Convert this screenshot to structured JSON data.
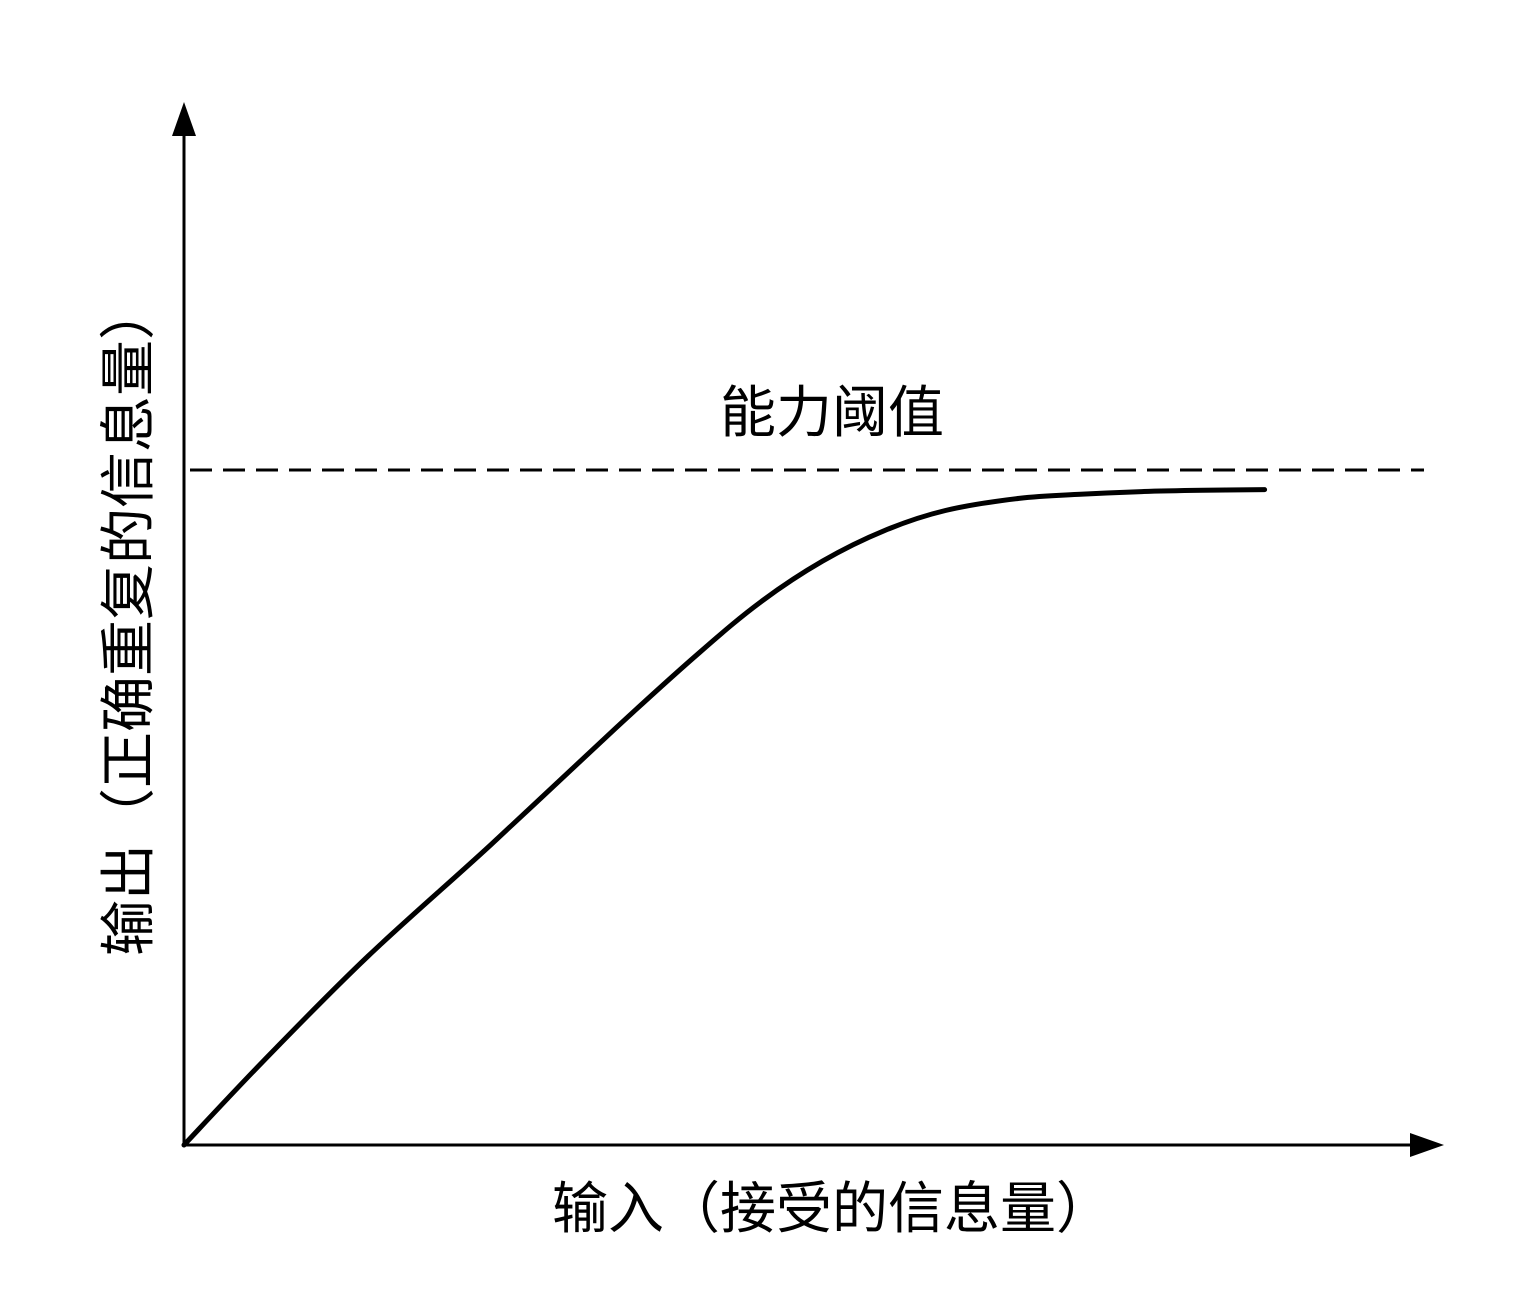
{
  "chart_data": {
    "type": "line",
    "title": "",
    "xlabel": "输入（接受的信息量）",
    "ylabel": "输出（正确重复的信息量）",
    "xlim": [
      0,
      100
    ],
    "ylim": [
      0,
      100
    ],
    "grid": false,
    "annotation": {
      "text": "能力阈值",
      "threshold_y": 100
    },
    "series": [
      {
        "x": [
          0,
          6.5,
          15,
          25,
          35,
          42,
          47,
          52,
          57,
          62,
          68,
          73,
          78,
          83,
          88
        ],
        "y": [
          0,
          12.5,
          28,
          44.5,
          61.5,
          73,
          80.5,
          86.5,
          91,
          94,
          95.8,
          96.4,
          96.8,
          97,
          97.1
        ]
      }
    ],
    "colors": {
      "line": "#000000",
      "axis": "#000000",
      "threshold": "#000000"
    }
  }
}
